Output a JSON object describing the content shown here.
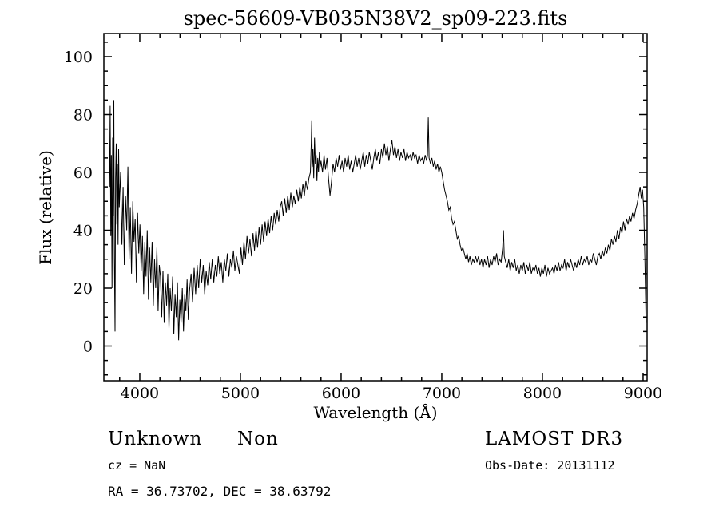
{
  "chart_data": {
    "type": "line",
    "title": "spec-56609-VB035N38V2_sp09-223.fits",
    "xlabel": "Wavelength (Å)",
    "ylabel": "Flux (relative)",
    "xlim": [
      3643,
      9040
    ],
    "ylim": [
      -12,
      108
    ],
    "x_ticks": [
      4000,
      5000,
      6000,
      7000,
      8000,
      9000
    ],
    "x_minor_step": 200,
    "y_ticks": [
      0,
      20,
      40,
      60,
      80,
      100
    ],
    "y_minor_step": 5,
    "grid": false,
    "legend": "none",
    "line_color": "#000000",
    "background": "#ffffff",
    "series": [
      [
        3700,
        55
      ],
      [
        3706,
        83
      ],
      [
        3712,
        38
      ],
      [
        3718,
        66
      ],
      [
        3724,
        20
      ],
      [
        3730,
        72
      ],
      [
        3736,
        45
      ],
      [
        3742,
        85
      ],
      [
        3748,
        30
      ],
      [
        3754,
        5
      ],
      [
        3760,
        58
      ],
      [
        3766,
        70
      ],
      [
        3772,
        42
      ],
      [
        3778,
        63
      ],
      [
        3784,
        35
      ],
      [
        3790,
        68
      ],
      [
        3796,
        48
      ],
      [
        3810,
        60
      ],
      [
        3822,
        35
      ],
      [
        3834,
        55
      ],
      [
        3846,
        28
      ],
      [
        3858,
        52
      ],
      [
        3870,
        40
      ],
      [
        3882,
        62
      ],
      [
        3894,
        30
      ],
      [
        3906,
        48
      ],
      [
        3918,
        25
      ],
      [
        3930,
        50
      ],
      [
        3942,
        36
      ],
      [
        3954,
        44
      ],
      [
        3966,
        22
      ],
      [
        3978,
        46
      ],
      [
        3990,
        32
      ],
      [
        4002,
        42
      ],
      [
        4014,
        26
      ],
      [
        4026,
        38
      ],
      [
        4038,
        18
      ],
      [
        4050,
        36
      ],
      [
        4062,
        24
      ],
      [
        4074,
        40
      ],
      [
        4086,
        16
      ],
      [
        4098,
        34
      ],
      [
        4110,
        22
      ],
      [
        4122,
        36
      ],
      [
        4134,
        14
      ],
      [
        4146,
        30
      ],
      [
        4158,
        20
      ],
      [
        4170,
        34
      ],
      [
        4182,
        12
      ],
      [
        4194,
        28
      ],
      [
        4206,
        24
      ],
      [
        4218,
        10
      ],
      [
        4230,
        26
      ],
      [
        4242,
        8
      ],
      [
        4254,
        22
      ],
      [
        4266,
        14
      ],
      [
        4278,
        25
      ],
      [
        4290,
        6
      ],
      [
        4302,
        20
      ],
      [
        4314,
        12
      ],
      [
        4326,
        24
      ],
      [
        4338,
        4
      ],
      [
        4350,
        18
      ],
      [
        4362,
        10
      ],
      [
        4374,
        22
      ],
      [
        4386,
        2
      ],
      [
        4398,
        16
      ],
      [
        4410,
        8
      ],
      [
        4422,
        20
      ],
      [
        4434,
        5
      ],
      [
        4446,
        18
      ],
      [
        4458,
        12
      ],
      [
        4470,
        23
      ],
      [
        4482,
        9
      ],
      [
        4494,
        19
      ],
      [
        4510,
        25
      ],
      [
        4525,
        15
      ],
      [
        4540,
        27
      ],
      [
        4555,
        18
      ],
      [
        4570,
        28
      ],
      [
        4585,
        20
      ],
      [
        4600,
        30
      ],
      [
        4615,
        22
      ],
      [
        4630,
        28
      ],
      [
        4645,
        18
      ],
      [
        4660,
        26
      ],
      [
        4675,
        21
      ],
      [
        4690,
        29
      ],
      [
        4705,
        23
      ],
      [
        4720,
        30
      ],
      [
        4735,
        22
      ],
      [
        4750,
        28
      ],
      [
        4765,
        24
      ],
      [
        4780,
        31
      ],
      [
        4795,
        25
      ],
      [
        4810,
        29
      ],
      [
        4825,
        22
      ],
      [
        4840,
        30
      ],
      [
        4855,
        26
      ],
      [
        4870,
        32
      ],
      [
        4885,
        24
      ],
      [
        4900,
        30
      ],
      [
        4915,
        27
      ],
      [
        4930,
        33
      ],
      [
        4945,
        26
      ],
      [
        4960,
        31
      ],
      [
        4975,
        28
      ],
      [
        4990,
        25
      ],
      [
        5005,
        34
      ],
      [
        5020,
        28
      ],
      [
        5035,
        36
      ],
      [
        5050,
        30
      ],
      [
        5065,
        38
      ],
      [
        5080,
        32
      ],
      [
        5095,
        37
      ],
      [
        5110,
        31
      ],
      [
        5125,
        39
      ],
      [
        5140,
        33
      ],
      [
        5155,
        40
      ],
      [
        5170,
        34
      ],
      [
        5185,
        41
      ],
      [
        5200,
        35
      ],
      [
        5215,
        42
      ],
      [
        5230,
        36
      ],
      [
        5245,
        43
      ],
      [
        5260,
        38
      ],
      [
        5275,
        44
      ],
      [
        5290,
        39
      ],
      [
        5305,
        45
      ],
      [
        5320,
        40
      ],
      [
        5335,
        46
      ],
      [
        5350,
        42
      ],
      [
        5365,
        47
      ],
      [
        5380,
        43
      ],
      [
        5395,
        48
      ],
      [
        5410,
        50
      ],
      [
        5425,
        45
      ],
      [
        5440,
        51
      ],
      [
        5455,
        46
      ],
      [
        5470,
        52
      ],
      [
        5485,
        47
      ],
      [
        5500,
        53
      ],
      [
        5515,
        48
      ],
      [
        5530,
        52
      ],
      [
        5545,
        49
      ],
      [
        5560,
        54
      ],
      [
        5575,
        50
      ],
      [
        5590,
        55
      ],
      [
        5605,
        51
      ],
      [
        5620,
        56
      ],
      [
        5635,
        52
      ],
      [
        5650,
        57
      ],
      [
        5665,
        54
      ],
      [
        5680,
        58
      ],
      [
        5695,
        60
      ],
      [
        5703,
        70
      ],
      [
        5708,
        78
      ],
      [
        5714,
        62
      ],
      [
        5720,
        68
      ],
      [
        5728,
        58
      ],
      [
        5736,
        72
      ],
      [
        5744,
        63
      ],
      [
        5752,
        66
      ],
      [
        5760,
        57
      ],
      [
        5768,
        65
      ],
      [
        5776,
        60
      ],
      [
        5784,
        67
      ],
      [
        5792,
        62
      ],
      [
        5800,
        64
      ],
      [
        5815,
        60
      ],
      [
        5830,
        66
      ],
      [
        5845,
        61
      ],
      [
        5860,
        65
      ],
      [
        5875,
        58
      ],
      [
        5890,
        52
      ],
      [
        5905,
        57
      ],
      [
        5920,
        63
      ],
      [
        5935,
        60
      ],
      [
        5950,
        65
      ],
      [
        5965,
        62
      ],
      [
        5980,
        66
      ],
      [
        5995,
        61
      ],
      [
        6010,
        64
      ],
      [
        6025,
        60
      ],
      [
        6040,
        65
      ],
      [
        6055,
        62
      ],
      [
        6070,
        66
      ],
      [
        6085,
        61
      ],
      [
        6100,
        64
      ],
      [
        6115,
        60
      ],
      [
        6130,
        63
      ],
      [
        6145,
        66
      ],
      [
        6160,
        62
      ],
      [
        6175,
        65
      ],
      [
        6190,
        61
      ],
      [
        6205,
        64
      ],
      [
        6220,
        67
      ],
      [
        6235,
        62
      ],
      [
        6250,
        66
      ],
      [
        6265,
        63
      ],
      [
        6280,
        67
      ],
      [
        6295,
        64
      ],
      [
        6310,
        61
      ],
      [
        6325,
        65
      ],
      [
        6340,
        68
      ],
      [
        6355,
        64
      ],
      [
        6370,
        67
      ],
      [
        6385,
        63
      ],
      [
        6400,
        68
      ],
      [
        6415,
        65
      ],
      [
        6430,
        70
      ],
      [
        6445,
        66
      ],
      [
        6460,
        69
      ],
      [
        6475,
        64
      ],
      [
        6490,
        68
      ],
      [
        6505,
        71
      ],
      [
        6520,
        66
      ],
      [
        6535,
        69
      ],
      [
        6550,
        65
      ],
      [
        6565,
        68
      ],
      [
        6580,
        64
      ],
      [
        6595,
        67
      ],
      [
        6610,
        65
      ],
      [
        6625,
        68
      ],
      [
        6640,
        64
      ],
      [
        6655,
        67
      ],
      [
        6670,
        65
      ],
      [
        6685,
        66
      ],
      [
        6700,
        64
      ],
      [
        6715,
        67
      ],
      [
        6730,
        65
      ],
      [
        6745,
        66
      ],
      [
        6760,
        63
      ],
      [
        6775,
        66
      ],
      [
        6790,
        64
      ],
      [
        6805,
        65
      ],
      [
        6820,
        63
      ],
      [
        6835,
        66
      ],
      [
        6850,
        64
      ],
      [
        6858,
        66
      ],
      [
        6866,
        79
      ],
      [
        6874,
        65
      ],
      [
        6888,
        63
      ],
      [
        6902,
        65
      ],
      [
        6916,
        62
      ],
      [
        6930,
        64
      ],
      [
        6944,
        61
      ],
      [
        6958,
        63
      ],
      [
        6972,
        60
      ],
      [
        6986,
        62
      ],
      [
        7000,
        60
      ],
      [
        7014,
        57
      ],
      [
        7028,
        54
      ],
      [
        7042,
        52
      ],
      [
        7056,
        50
      ],
      [
        7070,
        47
      ],
      [
        7084,
        48
      ],
      [
        7098,
        44
      ],
      [
        7112,
        42
      ],
      [
        7126,
        43
      ],
      [
        7140,
        40
      ],
      [
        7154,
        37
      ],
      [
        7168,
        38
      ],
      [
        7182,
        35
      ],
      [
        7196,
        33
      ],
      [
        7210,
        34
      ],
      [
        7224,
        32
      ],
      [
        7238,
        30
      ],
      [
        7252,
        32
      ],
      [
        7266,
        29
      ],
      [
        7280,
        31
      ],
      [
        7294,
        28
      ],
      [
        7308,
        30
      ],
      [
        7322,
        29
      ],
      [
        7336,
        31
      ],
      [
        7350,
        29
      ],
      [
        7365,
        31
      ],
      [
        7380,
        28
      ],
      [
        7395,
        30
      ],
      [
        7410,
        27
      ],
      [
        7425,
        30
      ],
      [
        7440,
        28
      ],
      [
        7455,
        31
      ],
      [
        7470,
        27
      ],
      [
        7485,
        30
      ],
      [
        7500,
        28
      ],
      [
        7515,
        31
      ],
      [
        7530,
        29
      ],
      [
        7545,
        32
      ],
      [
        7560,
        28
      ],
      [
        7575,
        30
      ],
      [
        7590,
        29
      ],
      [
        7605,
        34
      ],
      [
        7613,
        40
      ],
      [
        7621,
        31
      ],
      [
        7635,
        29
      ],
      [
        7650,
        27
      ],
      [
        7665,
        30
      ],
      [
        7680,
        26
      ],
      [
        7695,
        29
      ],
      [
        7710,
        27
      ],
      [
        7725,
        30
      ],
      [
        7740,
        26
      ],
      [
        7755,
        28
      ],
      [
        7770,
        25
      ],
      [
        7785,
        28
      ],
      [
        7800,
        26
      ],
      [
        7815,
        29
      ],
      [
        7830,
        25
      ],
      [
        7845,
        28
      ],
      [
        7860,
        26
      ],
      [
        7875,
        29
      ],
      [
        7890,
        25
      ],
      [
        7905,
        27
      ],
      [
        7920,
        26
      ],
      [
        7935,
        28
      ],
      [
        7950,
        25
      ],
      [
        7965,
        27
      ],
      [
        7980,
        24
      ],
      [
        7995,
        27
      ],
      [
        8010,
        25
      ],
      [
        8025,
        28
      ],
      [
        8040,
        24
      ],
      [
        8055,
        27
      ],
      [
        8070,
        25
      ],
      [
        8085,
        26
      ],
      [
        8100,
        27
      ],
      [
        8115,
        25
      ],
      [
        8130,
        28
      ],
      [
        8145,
        26
      ],
      [
        8160,
        29
      ],
      [
        8175,
        26
      ],
      [
        8190,
        28
      ],
      [
        8205,
        27
      ],
      [
        8220,
        30
      ],
      [
        8235,
        26
      ],
      [
        8250,
        29
      ],
      [
        8265,
        27
      ],
      [
        8280,
        30
      ],
      [
        8295,
        28
      ],
      [
        8310,
        26
      ],
      [
        8325,
        29
      ],
      [
        8340,
        27
      ],
      [
        8355,
        30
      ],
      [
        8370,
        28
      ],
      [
        8385,
        31
      ],
      [
        8400,
        28
      ],
      [
        8415,
        30
      ],
      [
        8430,
        29
      ],
      [
        8445,
        31
      ],
      [
        8460,
        28
      ],
      [
        8475,
        30
      ],
      [
        8490,
        29
      ],
      [
        8505,
        32
      ],
      [
        8520,
        30
      ],
      [
        8535,
        28
      ],
      [
        8550,
        31
      ],
      [
        8565,
        32
      ],
      [
        8580,
        30
      ],
      [
        8595,
        33
      ],
      [
        8610,
        31
      ],
      [
        8625,
        34
      ],
      [
        8640,
        32
      ],
      [
        8655,
        35
      ],
      [
        8670,
        33
      ],
      [
        8685,
        37
      ],
      [
        8700,
        35
      ],
      [
        8715,
        38
      ],
      [
        8730,
        36
      ],
      [
        8745,
        40
      ],
      [
        8760,
        37
      ],
      [
        8775,
        41
      ],
      [
        8790,
        39
      ],
      [
        8805,
        43
      ],
      [
        8820,
        40
      ],
      [
        8835,
        44
      ],
      [
        8850,
        42
      ],
      [
        8865,
        45
      ],
      [
        8880,
        43
      ],
      [
        8895,
        46
      ],
      [
        8910,
        44
      ],
      [
        8925,
        47
      ],
      [
        8940,
        49
      ],
      [
        8955,
        52
      ],
      [
        8970,
        55
      ],
      [
        8982,
        51
      ],
      [
        8994,
        54
      ],
      [
        9006,
        48
      ],
      [
        9018,
        30
      ],
      [
        9030,
        8
      ]
    ]
  },
  "annotations": {
    "class_label": "Unknown",
    "subclass_label": "Non",
    "cz": "cz = NaN",
    "radec": "RA =  36.73702, DEC =  38.63792",
    "survey": "LAMOST DR3",
    "obs_date": "Obs-Date: 20131112"
  }
}
